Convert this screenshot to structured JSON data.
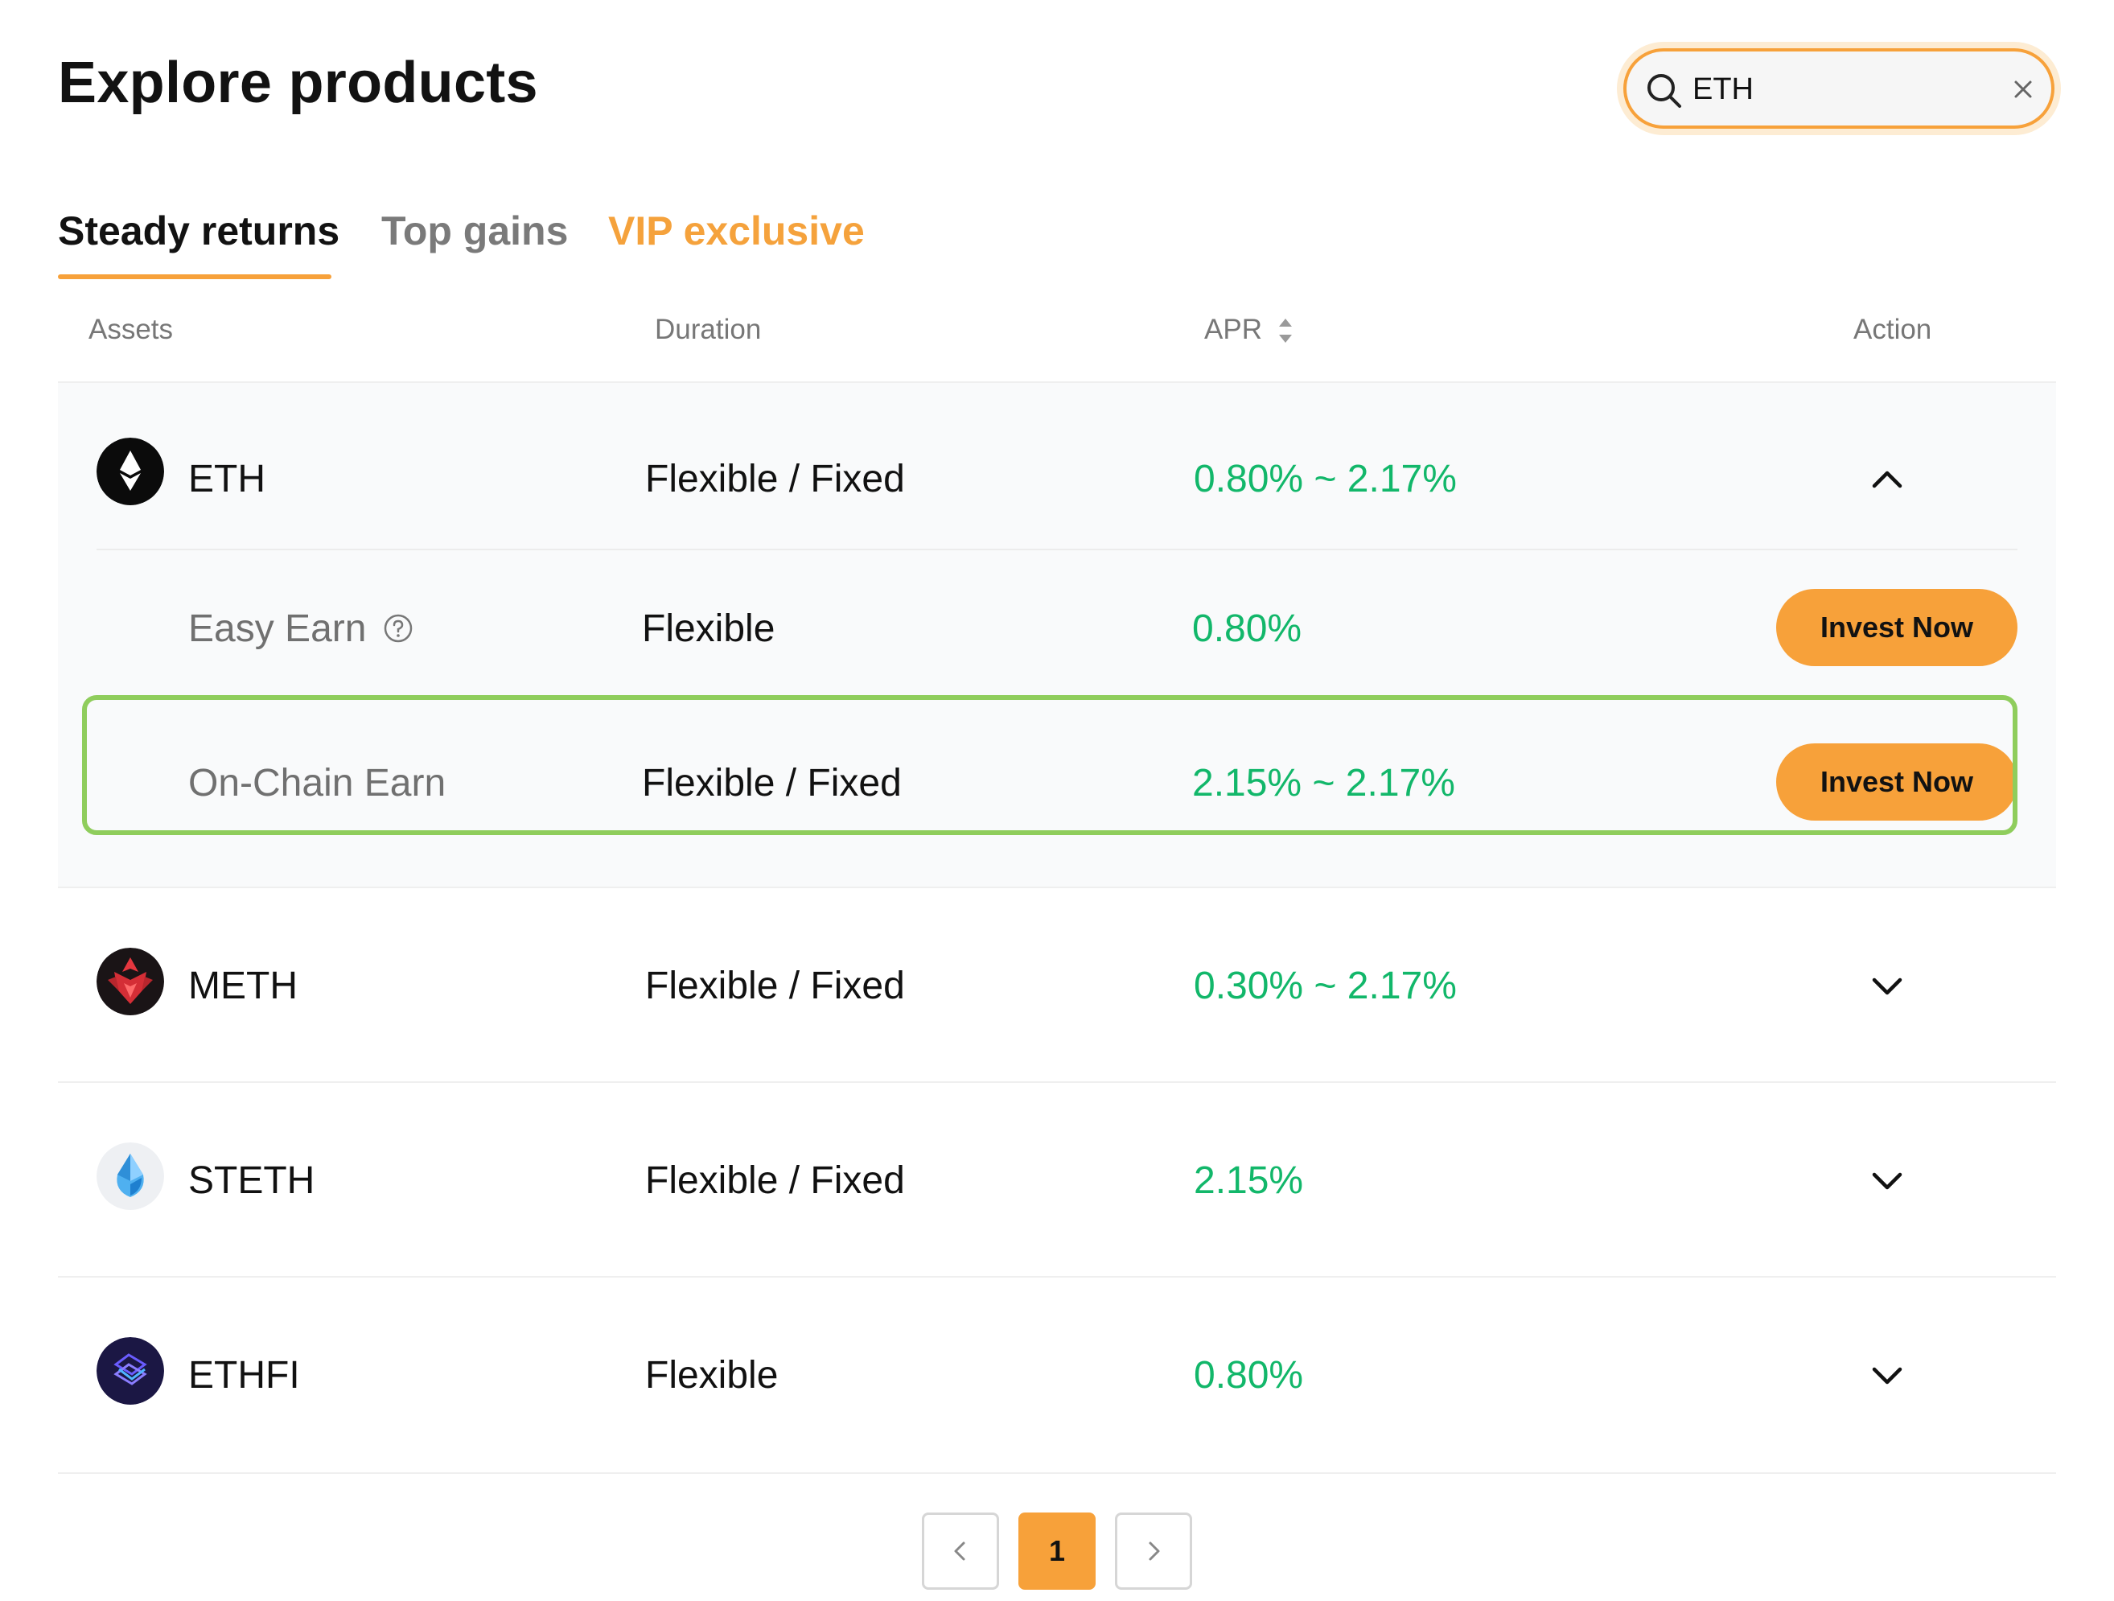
{
  "header": {
    "title": "Explore products",
    "search": {
      "value": "ETH",
      "placeholder": ""
    }
  },
  "tabs": [
    {
      "label": "Steady returns",
      "active": true
    },
    {
      "label": "Top gains",
      "active": false
    },
    {
      "label": "VIP exclusive",
      "active": false
    }
  ],
  "columns": {
    "assets": "Assets",
    "duration": "Duration",
    "apr": "APR",
    "action": "Action"
  },
  "assets": [
    {
      "name": "ETH",
      "icon": "eth-icon",
      "duration": "Flexible / Fixed",
      "apr": "0.80% ~ 2.17%",
      "expanded": true,
      "products": [
        {
          "name": "Easy Earn",
          "has_help": true,
          "duration": "Flexible",
          "apr": "0.80%",
          "action": "Invest Now"
        },
        {
          "name": "On-Chain Earn",
          "has_help": false,
          "duration": "Flexible / Fixed",
          "apr": "2.15% ~ 2.17%",
          "action": "Invest Now",
          "highlighted": true
        }
      ]
    },
    {
      "name": "METH",
      "icon": "meth-icon",
      "duration": "Flexible / Fixed",
      "apr": "0.30% ~ 2.17%",
      "expanded": false
    },
    {
      "name": "STETH",
      "icon": "steth-icon",
      "duration": "Flexible / Fixed",
      "apr": "2.15%",
      "expanded": false
    },
    {
      "name": "ETHFI",
      "icon": "ethfi-icon",
      "duration": "Flexible",
      "apr": "0.80%",
      "expanded": false
    }
  ],
  "pagination": {
    "current": "1"
  },
  "colors": {
    "accent": "#f7a13a",
    "apr_green": "#12b76a",
    "highlight": "#8fcd5c"
  }
}
